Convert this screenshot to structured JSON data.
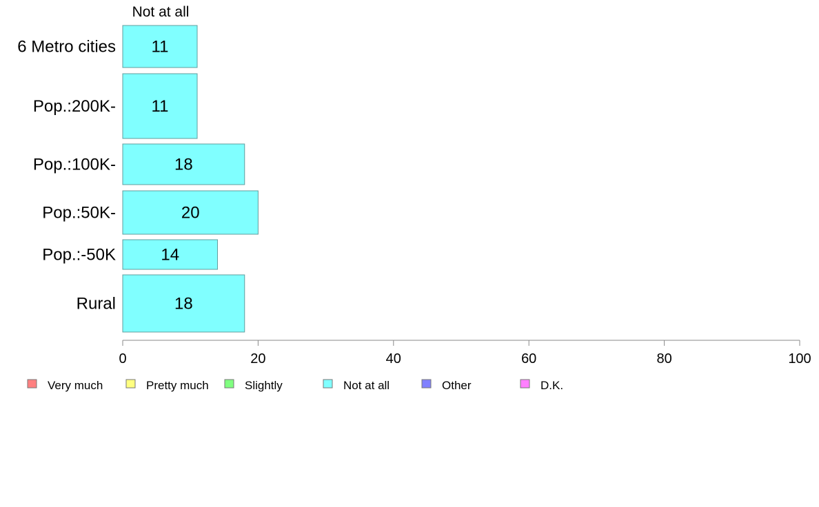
{
  "chart_data": {
    "type": "bar",
    "orientation": "horizontal",
    "categories": [
      "6 Metro cities",
      "Pop.:200K-",
      "Pop.:100K-",
      "Pop.:50K-",
      "Pop.:-50K",
      "Rural"
    ],
    "series": [
      {
        "name": "Not at all",
        "color": "#80ffff",
        "values": [
          11,
          11,
          18,
          20,
          14,
          18
        ]
      }
    ],
    "xlim": [
      0,
      100
    ],
    "xticks": [
      0,
      20,
      40,
      60,
      80,
      100
    ],
    "grid": false,
    "legend_position": "bottom",
    "legend": [
      {
        "label": "Very much",
        "color": "#ff8080"
      },
      {
        "label": "Pretty much",
        "color": "#ffff80"
      },
      {
        "label": "Slightly",
        "color": "#80ff80"
      },
      {
        "label": "Not at all",
        "color": "#80ffff"
      },
      {
        "label": "Other",
        "color": "#8080ff"
      },
      {
        "label": "D.K.",
        "color": "#ff80ff"
      }
    ]
  }
}
